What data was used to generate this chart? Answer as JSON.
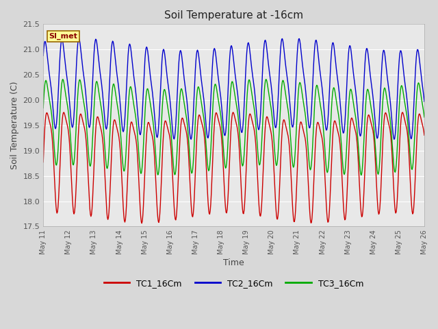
{
  "title": "Soil Temperature at -16cm",
  "xlabel": "Time",
  "ylabel": "Soil Temperature (C)",
  "ylim": [
    17.5,
    21.5
  ],
  "background_color": "#e8e8e8",
  "grid_color": "white",
  "annotation_text": "SI_met",
  "annotation_bg": "#ffff99",
  "annotation_border": "#996600",
  "line_colors": {
    "TC1": "#cc0000",
    "TC2": "#0000cc",
    "TC3": "#00aa00"
  },
  "legend_labels": [
    "TC1_16Cm",
    "TC2_16Cm",
    "TC3_16Cm"
  ],
  "tick_labels": [
    "May 11",
    "May 12",
    "May 13",
    "May 14",
    "May 15",
    "May 16",
    "May 17",
    "May 18",
    "May 19",
    "May 20",
    "May 21",
    "May 22",
    "May 23",
    "May 24",
    "May 25",
    "May 26"
  ],
  "n_days": 15,
  "samples_per_day": 48,
  "figsize": [
    6.4,
    4.8
  ],
  "dpi": 100
}
